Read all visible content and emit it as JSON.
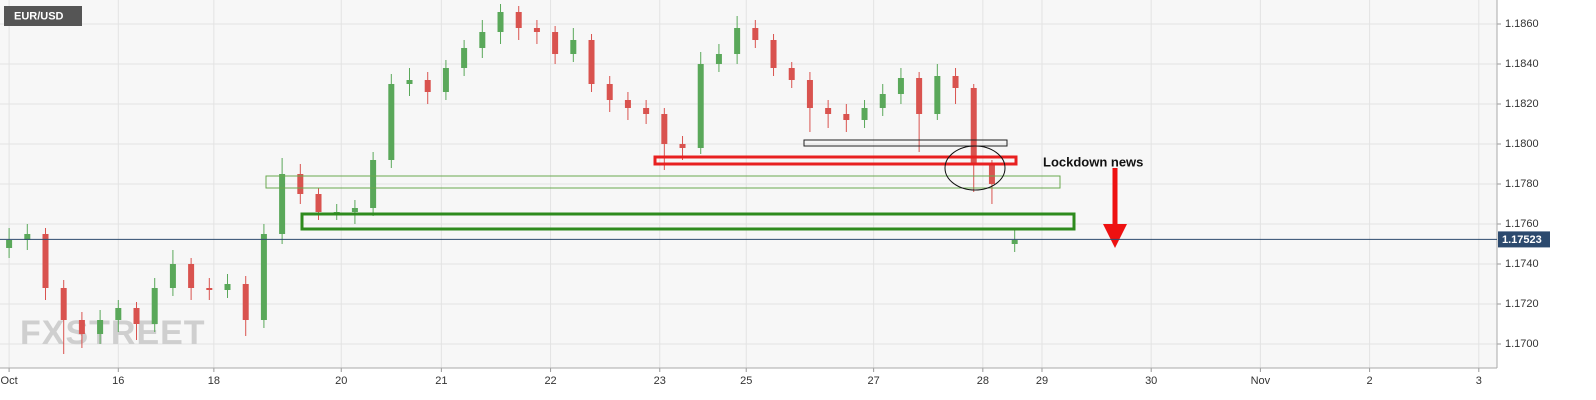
{
  "chart_data": {
    "type": "candlestick",
    "title": "EUR/USD",
    "watermark": "FXSTREET",
    "annotation": "Lockdown news",
    "up_color": "#5aa85a",
    "down_color": "#d9534f",
    "grid": true,
    "last_price": 1.17523,
    "xlim": [
      -2,
      327
    ],
    "xticks": [
      {
        "value": 0,
        "label": "Oct"
      },
      {
        "value": 24,
        "label": "16"
      },
      {
        "value": 45,
        "label": "18"
      },
      {
        "value": 73,
        "label": "20"
      },
      {
        "value": 95,
        "label": "21"
      },
      {
        "value": 119,
        "label": "22"
      },
      {
        "value": 143,
        "label": "23"
      },
      {
        "value": 162,
        "label": "25"
      },
      {
        "value": 190,
        "label": "27"
      },
      {
        "value": 214,
        "label": "28"
      },
      {
        "value": 227,
        "label": "29"
      },
      {
        "value": 251,
        "label": "30"
      },
      {
        "value": 275,
        "label": "Nov"
      },
      {
        "value": 299,
        "label": "2"
      },
      {
        "value": 323,
        "label": "3"
      }
    ],
    "ylim": [
      1.1688,
      1.1872
    ],
    "yticks": [
      {
        "value": 1.17,
        "label": "1.1700"
      },
      {
        "value": 1.172,
        "label": "1.1720"
      },
      {
        "value": 1.174,
        "label": "1.1740"
      },
      {
        "value": 1.176,
        "label": "1.1760"
      },
      {
        "value": 1.178,
        "label": "1.1780"
      },
      {
        "value": 1.18,
        "label": "1.1800"
      },
      {
        "value": 1.182,
        "label": "1.1820"
      },
      {
        "value": 1.184,
        "label": "1.1840"
      },
      {
        "value": 1.186,
        "label": "1.1860"
      }
    ],
    "x": [
      0,
      4,
      8,
      12,
      16,
      20,
      24,
      28,
      32,
      36,
      40,
      44,
      48,
      52,
      56,
      60,
      64,
      68,
      72,
      76,
      80,
      84,
      88,
      92,
      96,
      100,
      104,
      108,
      112,
      116,
      120,
      124,
      128,
      132,
      136,
      140,
      144,
      148,
      152,
      156,
      160,
      164,
      168,
      172,
      176,
      180,
      184,
      188,
      192,
      196,
      200,
      204,
      208,
      212,
      216,
      221
    ],
    "open": [
      1.1748,
      1.1752,
      1.1755,
      1.1728,
      1.1712,
      1.1705,
      1.1712,
      1.1718,
      1.171,
      1.1728,
      1.174,
      1.1728,
      1.1727,
      1.173,
      1.1712,
      1.1755,
      1.1785,
      1.1775,
      1.1766,
      1.1766,
      1.1768,
      1.1792,
      1.183,
      1.1832,
      1.1826,
      1.1838,
      1.1848,
      1.1856,
      1.1866,
      1.1858,
      1.1856,
      1.1845,
      1.1852,
      1.183,
      1.1822,
      1.1818,
      1.1815,
      1.18,
      1.1798,
      1.184,
      1.1845,
      1.1858,
      1.1852,
      1.1838,
      1.1832,
      1.1818,
      1.1815,
      1.1812,
      1.1818,
      1.1825,
      1.1833,
      1.1815,
      1.1834,
      1.1828,
      1.179,
      1.175
    ],
    "high": [
      1.1758,
      1.176,
      1.1758,
      1.1732,
      1.1716,
      1.1717,
      1.1722,
      1.1721,
      1.1733,
      1.1747,
      1.1743,
      1.1733,
      1.1735,
      1.1734,
      1.176,
      1.1793,
      1.179,
      1.1778,
      1.177,
      1.1772,
      1.1796,
      1.1835,
      1.1838,
      1.1836,
      1.1842,
      1.1852,
      1.1862,
      1.187,
      1.1869,
      1.1862,
      1.1859,
      1.1858,
      1.1855,
      1.1834,
      1.1826,
      1.1822,
      1.1818,
      1.1804,
      1.1846,
      1.185,
      1.1864,
      1.1862,
      1.1855,
      1.1841,
      1.1836,
      1.1822,
      1.182,
      1.1822,
      1.183,
      1.1838,
      1.1836,
      1.184,
      1.1838,
      1.183,
      1.1792,
      1.1758
    ],
    "low": [
      1.1743,
      1.1747,
      1.1722,
      1.1695,
      1.1698,
      1.17,
      1.1706,
      1.1702,
      1.1706,
      1.1724,
      1.1722,
      1.1722,
      1.1723,
      1.1704,
      1.1708,
      1.175,
      1.177,
      1.1762,
      1.1762,
      1.176,
      1.1764,
      1.1788,
      1.1824,
      1.182,
      1.1822,
      1.1834,
      1.1843,
      1.185,
      1.1852,
      1.185,
      1.184,
      1.1841,
      1.1826,
      1.1816,
      1.1812,
      1.181,
      1.1787,
      1.1792,
      1.1795,
      1.1836,
      1.184,
      1.1848,
      1.1834,
      1.1828,
      1.1806,
      1.1808,
      1.1806,
      1.1808,
      1.1814,
      1.182,
      1.1796,
      1.1812,
      1.182,
      1.1776,
      1.177,
      1.1746
    ],
    "close": [
      1.1752,
      1.1755,
      1.1728,
      1.1712,
      1.1705,
      1.1712,
      1.1718,
      1.171,
      1.1728,
      1.174,
      1.1728,
      1.1727,
      1.173,
      1.1712,
      1.1755,
      1.1785,
      1.1775,
      1.1766,
      1.1766,
      1.1768,
      1.1792,
      1.183,
      1.1832,
      1.1826,
      1.1838,
      1.1848,
      1.1856,
      1.1866,
      1.1858,
      1.1856,
      1.1845,
      1.1852,
      1.183,
      1.1822,
      1.1818,
      1.1815,
      1.18,
      1.1798,
      1.184,
      1.1845,
      1.1858,
      1.1852,
      1.1838,
      1.1832,
      1.1818,
      1.1815,
      1.1812,
      1.1818,
      1.1825,
      1.1833,
      1.1815,
      1.1834,
      1.1828,
      1.179,
      1.178,
      1.1752
    ]
  }
}
